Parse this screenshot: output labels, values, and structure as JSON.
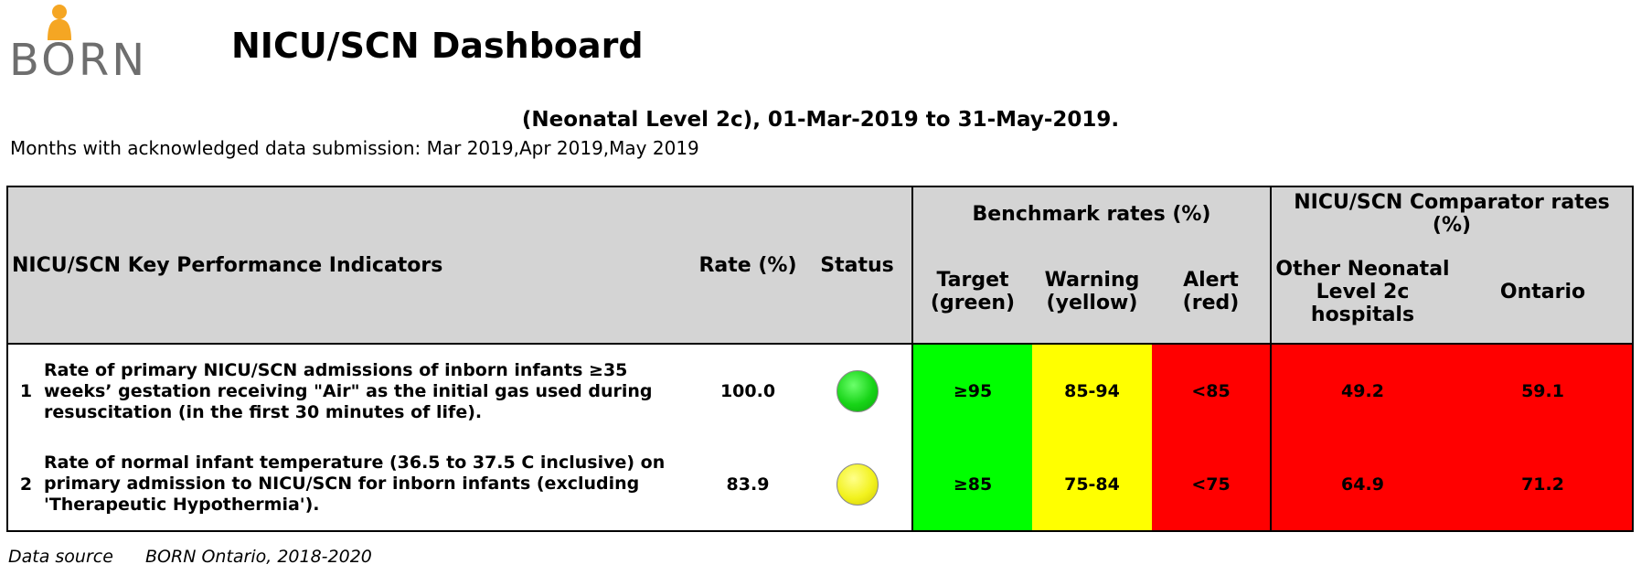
{
  "logo": {
    "text": "BORN"
  },
  "header": {
    "title": "NICU/SCN Dashboard",
    "subtitle": "(Neonatal Level 2c), 01-Mar-2019 to 31-May-2019.",
    "months": "Months with acknowledged data submission: Mar 2019,Apr 2019,May 2019"
  },
  "table": {
    "headers": {
      "indicators": "NICU/SCN Key Performance Indicators",
      "rate": "Rate (%)",
      "status": "Status",
      "benchmark_group": "Benchmark rates (%)",
      "target": "Target (green)",
      "warning": "Warning (yellow)",
      "alert": "Alert (red)",
      "comparator_group": "NICU/SCN Comparator rates (%)",
      "other": "Other Neonatal Level 2c hospitals",
      "ontario": "Ontario"
    },
    "rows": [
      {
        "num": "1",
        "indicator": "Rate of primary NICU/SCN admissions of inborn infants ≥35 weeks’ gestation receiving \"Air\" as the initial gas used during resuscitation (in the first 30 minutes of life).",
        "rate": "100.0",
        "status": "green",
        "target": "≥95",
        "warning": "85-94",
        "alert": "<85",
        "other": "49.2",
        "ontario": "59.1"
      },
      {
        "num": "2",
        "indicator": "Rate of normal infant temperature (36.5 to 37.5 C inclusive) on primary admission to NICU/SCN for inborn infants (excluding 'Therapeutic Hypothermia').",
        "rate": "83.9",
        "status": "yellow",
        "target": "≥85",
        "warning": "75-84",
        "alert": "<75",
        "other": "64.9",
        "ontario": "71.2"
      }
    ]
  },
  "footer": {
    "label": "Data source",
    "source": "BORN Ontario, 2018-2020"
  },
  "colors": {
    "green": "#00ff00",
    "yellow": "#ffff00",
    "red": "#ff0000",
    "header_bg": "#d4d4d4",
    "logo_orange": "#f5a623"
  }
}
